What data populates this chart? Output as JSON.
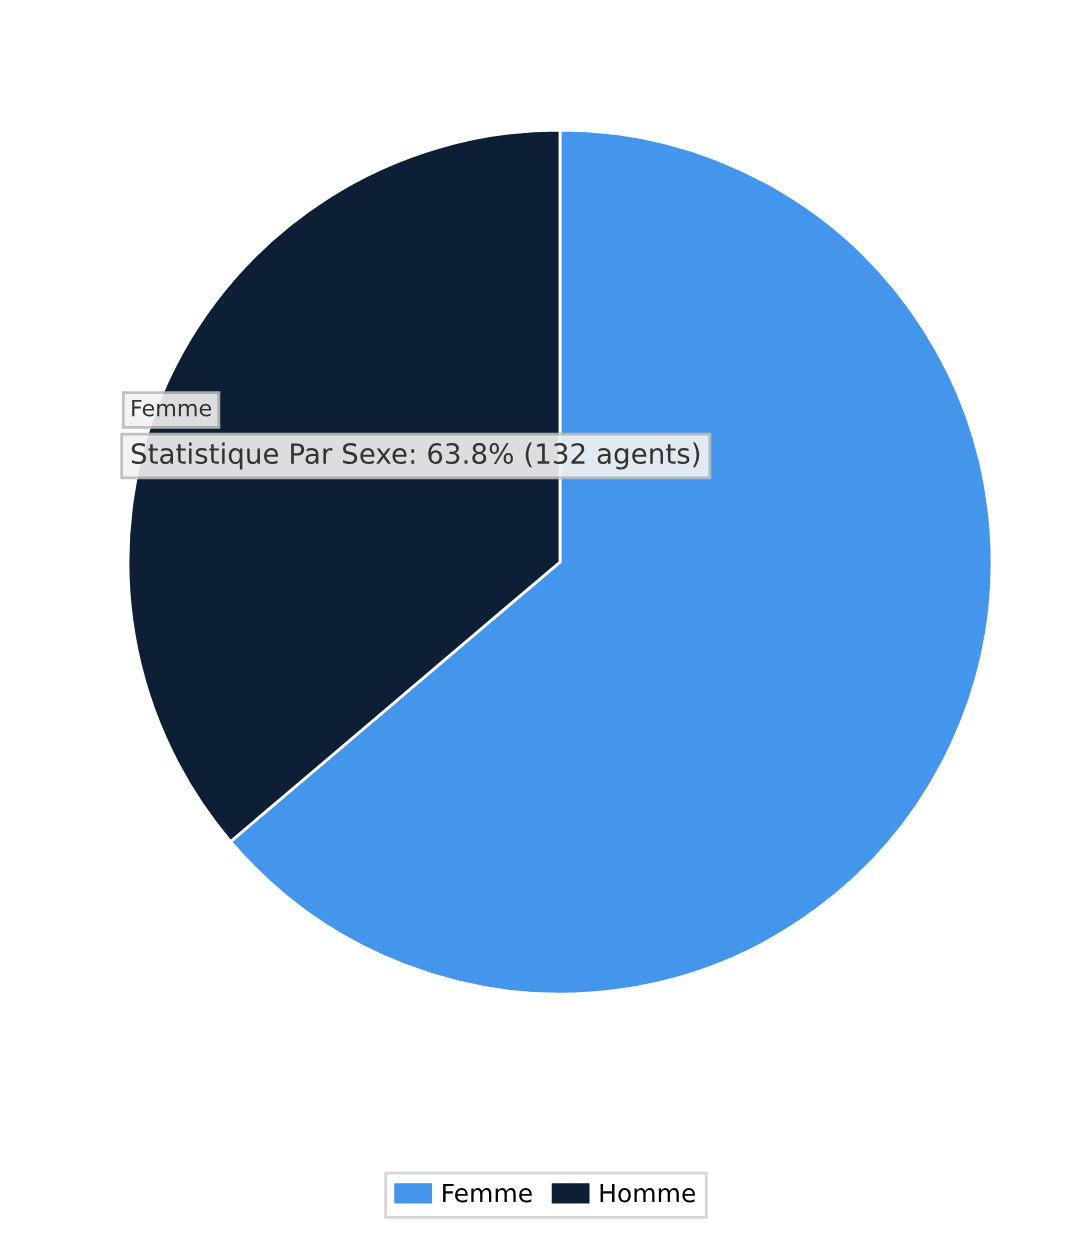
{
  "chart_data": {
    "type": "pie",
    "categories": [
      "Femme",
      "Homme"
    ],
    "values": [
      63.8,
      36.2
    ],
    "colors": [
      "#4496ec",
      "#0d1f35"
    ],
    "legend": "bottom",
    "annotations": [
      "Femme",
      "Statistique Par Sexe: 63.8% (132 agents)"
    ]
  }
}
